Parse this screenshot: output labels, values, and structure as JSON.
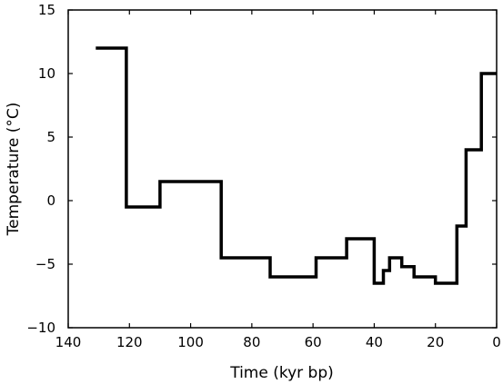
{
  "chart_data": {
    "type": "line",
    "step": true,
    "x_reversed": true,
    "xlabel": "Time (kyr bp)",
    "ylabel": "Temperature (°C)",
    "xlim": [
      0,
      140
    ],
    "ylim": [
      -10,
      15
    ],
    "xticks": [
      140,
      120,
      100,
      80,
      60,
      40,
      20,
      0
    ],
    "yticks": [
      15,
      10,
      5,
      0,
      -5,
      -10
    ],
    "grid": false,
    "series": [
      {
        "color": "#000000",
        "x": [
          131,
          121,
          121,
          110,
          110,
          90,
          90,
          74,
          74,
          59,
          59,
          49,
          49,
          40,
          40,
          37,
          37,
          35,
          35,
          31,
          31,
          27,
          27,
          20,
          20,
          13,
          13,
          10,
          10,
          5,
          5,
          0
        ],
        "y": [
          12,
          12,
          -0.5,
          -0.5,
          1.5,
          1.5,
          -4.5,
          -4.5,
          -6,
          -6,
          -4.5,
          -4.5,
          -3,
          -3,
          -6.5,
          -6.5,
          -5.5,
          -5.5,
          -4.5,
          -4.5,
          -5.2,
          -5.2,
          -6,
          -6,
          -6.5,
          -6.5,
          -2,
          -2,
          4,
          4,
          10,
          10
        ]
      }
    ]
  }
}
